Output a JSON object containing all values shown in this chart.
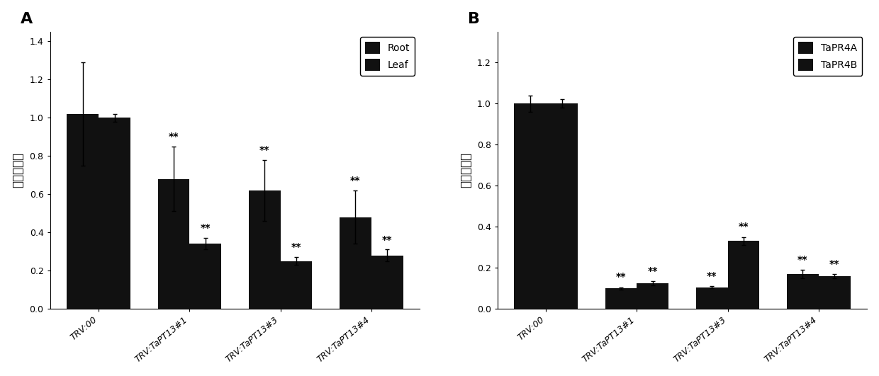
{
  "chart_A": {
    "categories": [
      "TRV:00",
      "TRV:TaPT13#1",
      "TRV:TaPT13#3",
      "TRV:TaPT13#4"
    ],
    "root_values": [
      1.02,
      0.68,
      0.62,
      0.48
    ],
    "root_errors": [
      0.27,
      0.17,
      0.16,
      0.14
    ],
    "leaf_values": [
      1.0,
      0.34,
      0.25,
      0.28
    ],
    "leaf_errors": [
      0.02,
      0.03,
      0.02,
      0.03
    ],
    "root_sig": [
      "",
      "**",
      "**",
      "**"
    ],
    "leaf_sig": [
      "",
      "**",
      "**",
      "**"
    ],
    "ylabel": "相对表达量",
    "ylim": [
      0,
      1.45
    ],
    "yticks": [
      0.0,
      0.2,
      0.4,
      0.6,
      0.8,
      1.0,
      1.2,
      1.4
    ],
    "legend_labels": [
      "Root",
      "Leaf"
    ],
    "panel_label": "A",
    "bar_width": 0.35
  },
  "chart_B": {
    "categories": [
      "TRV:00",
      "TRV:TaPT13#1",
      "TRV:TaPT13#3",
      "TRV:TaPT13#4"
    ],
    "pr4a_values": [
      1.0,
      0.1,
      0.105,
      0.17
    ],
    "pr4a_errors": [
      0.04,
      0.005,
      0.005,
      0.02
    ],
    "pr4b_values": [
      1.0,
      0.125,
      0.33,
      0.16
    ],
    "pr4b_errors": [
      0.02,
      0.01,
      0.02,
      0.01
    ],
    "pr4a_sig": [
      "",
      "**",
      "**",
      "**"
    ],
    "pr4b_sig": [
      "",
      "**",
      "**",
      "**"
    ],
    "ylabel": "相对表达量",
    "ylim": [
      0,
      1.35
    ],
    "yticks": [
      0.0,
      0.2,
      0.4,
      0.6,
      0.8,
      1.0,
      1.2
    ],
    "legend_labels": [
      "TaPR4A",
      "TaPR4B"
    ],
    "panel_label": "B",
    "bar_width": 0.35
  },
  "background_color": "#ffffff",
  "bar_color": "#111111",
  "sig_fontsize": 10,
  "tick_fontsize": 9,
  "ylabel_fontsize": 12,
  "panel_fontsize": 16
}
